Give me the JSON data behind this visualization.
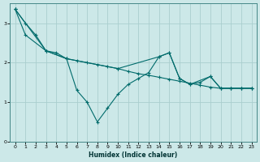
{
  "xlabel": "Humidex (Indice chaleur)",
  "bg_color": "#cce8e8",
  "line_color": "#006b6b",
  "grid_color": "#aacece",
  "xlim": [
    -0.5,
    23.5
  ],
  "ylim": [
    0,
    3.5
  ],
  "xticks": [
    0,
    1,
    2,
    3,
    4,
    5,
    6,
    7,
    8,
    9,
    10,
    11,
    12,
    13,
    14,
    15,
    16,
    17,
    18,
    19,
    20,
    21,
    22,
    23
  ],
  "yticks": [
    0,
    1,
    2,
    3
  ],
  "line1_x": [
    0,
    1,
    2,
    3,
    4,
    5,
    6,
    7,
    8,
    9,
    10,
    11,
    12,
    13,
    14,
    15,
    16,
    17,
    18,
    19,
    20,
    21,
    22,
    23
  ],
  "line1_y": [
    3.35,
    3.0,
    2.7,
    2.3,
    2.25,
    2.1,
    2.05,
    2.0,
    1.95,
    1.9,
    1.85,
    1.78,
    1.72,
    1.68,
    1.63,
    1.58,
    1.53,
    1.48,
    1.43,
    1.38,
    1.35,
    1.35,
    1.35,
    1.35
  ],
  "line2_x": [
    0,
    3,
    5,
    6,
    7,
    8,
    9,
    10,
    11,
    12,
    13,
    14,
    15,
    16,
    17,
    18,
    19,
    20,
    21,
    22,
    23
  ],
  "line2_y": [
    3.35,
    2.3,
    2.1,
    1.3,
    1.0,
    0.5,
    0.85,
    1.2,
    1.45,
    1.6,
    1.75,
    2.15,
    2.25,
    1.6,
    1.45,
    1.5,
    1.65,
    1.35,
    1.35,
    1.35,
    1.35
  ],
  "line3_x": [
    0,
    1,
    3,
    5,
    10,
    14,
    15,
    16,
    17,
    19,
    20,
    21,
    22,
    23
  ],
  "line3_y": [
    3.35,
    2.7,
    2.3,
    2.1,
    1.85,
    2.15,
    2.25,
    1.6,
    1.45,
    1.65,
    1.35,
    1.35,
    1.35,
    1.35
  ]
}
